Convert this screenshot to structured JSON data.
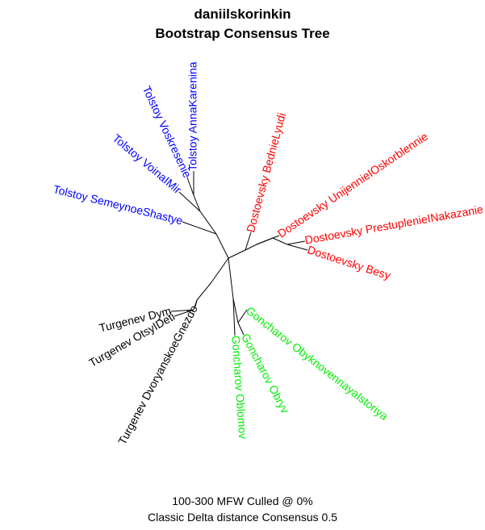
{
  "title": {
    "line1": "daniilskorinkin",
    "line2": "Bootstrap Consensus Tree"
  },
  "footer": {
    "line1": "100-300 MFW  Culled @ 0%",
    "line2": "Classic Delta distance Consensus 0.5"
  },
  "colors": {
    "Tolstoy": "#0000ff",
    "Dostoevsky": "#ff0000",
    "Goncharov": "#00ee00",
    "Turgenev": "#000000",
    "branch": "#000000"
  },
  "tree": {
    "leaves": [
      {
        "id": "L1",
        "label": "Tolstoy AnnaKarenina",
        "group": "Tolstoy"
      },
      {
        "id": "L2",
        "label": "Tolstoy Voskresenie",
        "group": "Tolstoy"
      },
      {
        "id": "L3",
        "label": "Tolstoy VoinaIMir",
        "group": "Tolstoy"
      },
      {
        "id": "L4",
        "label": "Tolstoy SemeynoeShastye",
        "group": "Tolstoy"
      },
      {
        "id": "L5",
        "label": "Dostoevsky BednieLyudi",
        "group": "Dostoevsky"
      },
      {
        "id": "L6",
        "label": "Dostoevsky UnijennieIOskorblennie",
        "group": "Dostoevsky"
      },
      {
        "id": "L7",
        "label": "Dostoevsky PrestuplenieINakazanie",
        "group": "Dostoevsky"
      },
      {
        "id": "L8",
        "label": "Dostoevsky Besy",
        "group": "Dostoevsky"
      },
      {
        "id": "L9",
        "label": "Goncharov ObyknovennayaIstoriya",
        "group": "Goncharov"
      },
      {
        "id": "L10",
        "label": "Goncharov Obryv",
        "group": "Goncharov"
      },
      {
        "id": "L11",
        "label": "Goncharov Oblomov",
        "group": "Goncharov"
      },
      {
        "id": "L12",
        "label": "Turgenev Dym",
        "group": "Turgenev"
      },
      {
        "id": "L13",
        "label": "Turgenev OtsyIDeti",
        "group": "Turgenev"
      },
      {
        "id": "L14",
        "label": "Turgenev DvoryanskoeGnezdo",
        "group": "Turgenev"
      }
    ]
  }
}
